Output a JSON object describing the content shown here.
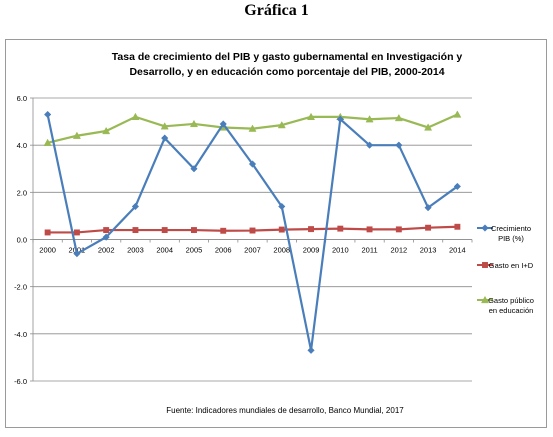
{
  "page": {
    "heading": "Gráfica 1"
  },
  "chart_data": {
    "type": "line",
    "title_lines": [
      "Tasa de crecimiento del PIB y gasto gubernamental en Investigación y",
      "Desarrollo, y en educación como porcentaje del PIB, 2000-2014"
    ],
    "categories": [
      "2000",
      "2001",
      "2002",
      "2003",
      "2004",
      "2005",
      "2006",
      "2007",
      "2008",
      "2009",
      "2010",
      "2011",
      "2012",
      "2013",
      "2014"
    ],
    "ylim": [
      -6,
      6
    ],
    "yticks": [
      "6.0",
      "4.0",
      "2.0",
      "0.0",
      "-2.0",
      "-4.0",
      "-6.0"
    ],
    "grid": "horizontal",
    "legend_position": "right",
    "series": [
      {
        "name_lines": [
          "Crecimiento",
          "PIB (%)"
        ],
        "color": "#4a7ebb",
        "marker": "diamond",
        "values": [
          5.3,
          -0.6,
          0.1,
          1.4,
          4.3,
          3.0,
          4.9,
          3.2,
          1.4,
          -4.7,
          5.1,
          4.0,
          4.0,
          1.35,
          2.25
        ]
      },
      {
        "name_lines": [
          "Gasto en I+D"
        ],
        "color": "#be4b48",
        "marker": "square",
        "values": [
          0.3,
          0.3,
          0.4,
          0.4,
          0.4,
          0.4,
          0.37,
          0.38,
          0.42,
          0.44,
          0.46,
          0.43,
          0.43,
          0.5,
          0.54
        ]
      },
      {
        "name_lines": [
          "Gasto público",
          "en educación"
        ],
        "color": "#98b954",
        "marker": "triangle",
        "values": [
          4.1,
          4.4,
          4.6,
          5.2,
          4.8,
          4.9,
          4.75,
          4.7,
          4.85,
          5.2,
          5.2,
          5.1,
          5.15,
          4.75,
          5.3
        ]
      }
    ],
    "source": "Fuente: Indicadores mundiales de desarrollo, Banco Mundial, 2017"
  }
}
